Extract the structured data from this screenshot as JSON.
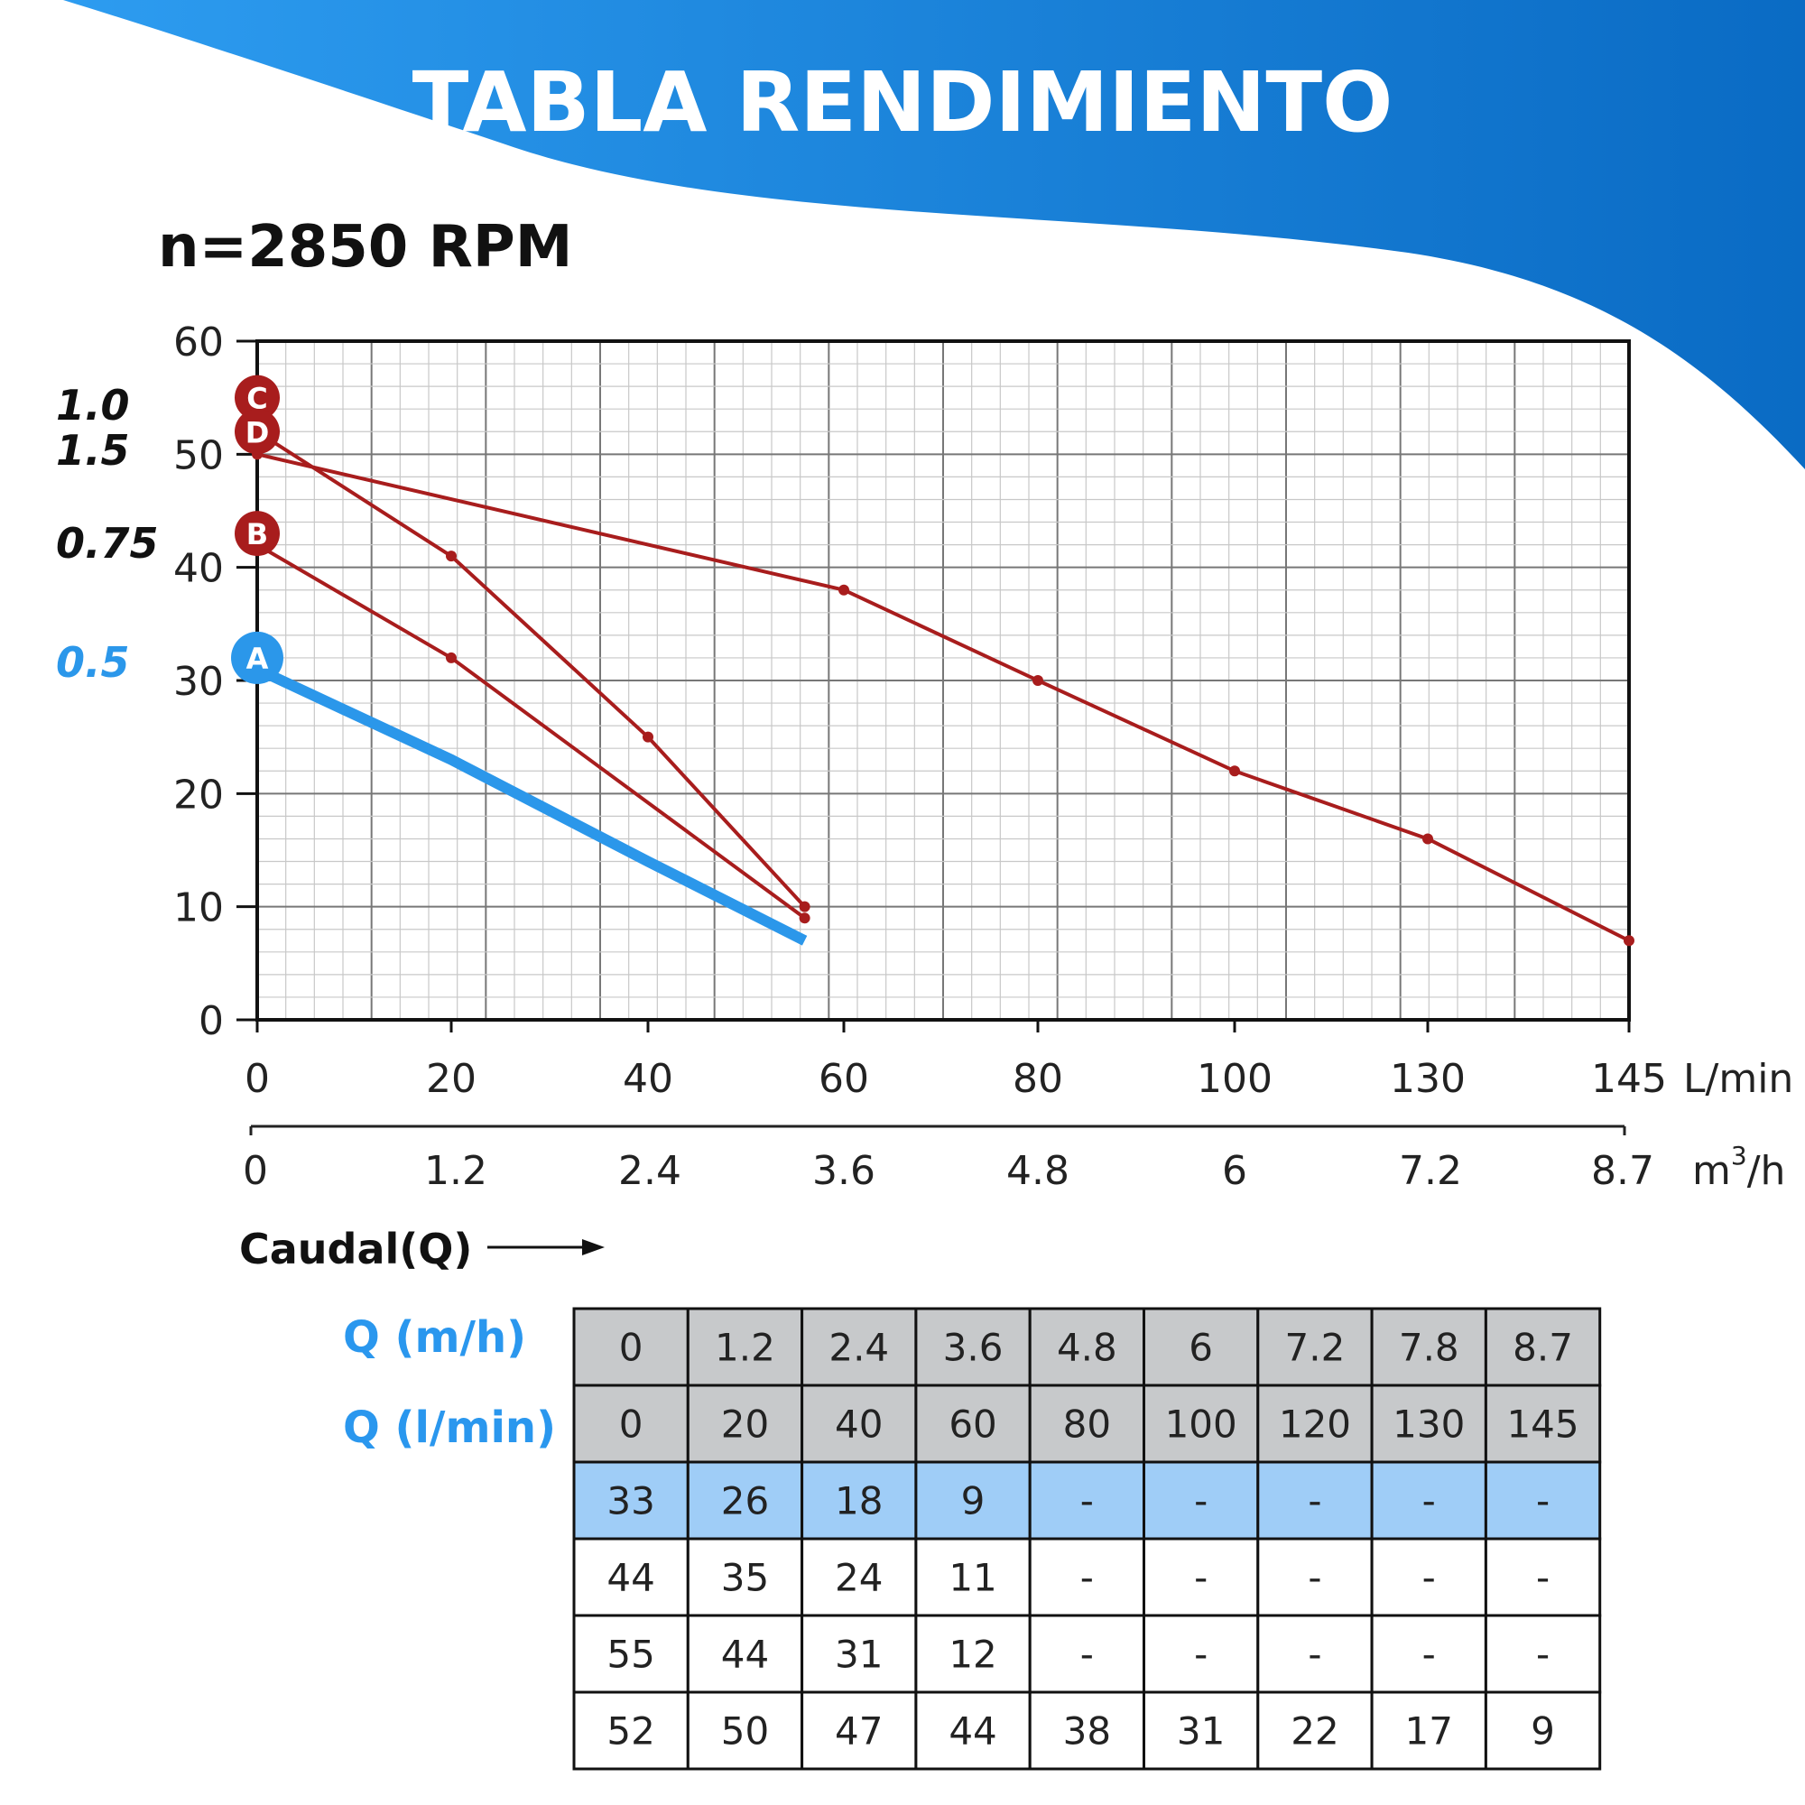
{
  "colors": {
    "banner_start": "#2d9cf0",
    "banner_end": "#0a6bc4",
    "red_curve": "#a81d1d",
    "blue_curve": "#2b97ea",
    "blue_row": "#9fcdf7",
    "grey_header": "#c7c9cb",
    "q_label": "#2a97ee"
  },
  "header": {
    "title": "TABLA RENDIMIENTO"
  },
  "subtitle": "n=2850 RPM",
  "chart_data": {
    "type": "line",
    "y_ticks": [
      "0",
      "10",
      "20",
      "30",
      "40",
      "50",
      "60"
    ],
    "ylim": [
      0,
      60
    ],
    "x_lmin_ticks": [
      "0",
      "20",
      "40",
      "60",
      "80",
      "100",
      "130",
      "145"
    ],
    "x_lmin_unit": "L/min",
    "x_m3h_ticks": [
      "0",
      "1.2",
      "2.4",
      "3.6",
      "4.8",
      "6",
      "7.2",
      "8.7"
    ],
    "x_m3h_unit": "m",
    "x_m3h_unit_sup": "3",
    "x_m3h_unit_tail": "/h",
    "xlabel": "Caudal(Q)",
    "grid": true,
    "series": [
      {
        "name": "A",
        "power": "0.5",
        "color": "#2b97ea",
        "x": [
          0,
          20,
          40,
          56
        ],
        "y": [
          31,
          23,
          14,
          7
        ]
      },
      {
        "name": "B",
        "power": "0.75",
        "color": "#a81d1d",
        "x": [
          0,
          20,
          56
        ],
        "y": [
          42,
          32,
          9
        ]
      },
      {
        "name": "C",
        "power": "1.0",
        "color": "#a81d1d",
        "x": [
          0,
          60,
          80,
          100,
          130,
          145
        ],
        "y": [
          50,
          38,
          30,
          22,
          16,
          7
        ]
      },
      {
        "name": "D",
        "power": "1.5",
        "color": "#a81d1d",
        "x": [
          0,
          20,
          40,
          56
        ],
        "y": [
          52,
          41,
          25,
          10
        ]
      }
    ],
    "markers": [
      {
        "label": "C",
        "x": 0,
        "y": 55,
        "power": "1.0"
      },
      {
        "label": "D",
        "x": 0,
        "y": 52,
        "power": "1.5"
      },
      {
        "label": "B",
        "x": 0,
        "y": 43,
        "power": "0.75"
      },
      {
        "label": "A",
        "x": 0,
        "y": 32,
        "power": "0.5"
      }
    ]
  },
  "table": {
    "row_labels": [
      "Q (m/h)",
      "Q (l/min)"
    ],
    "rows": [
      [
        "0",
        "1.2",
        "2.4",
        "3.6",
        "4.8",
        "6",
        "7.2",
        "7.8",
        "8.7"
      ],
      [
        "0",
        "20",
        "40",
        "60",
        "80",
        "100",
        "120",
        "130",
        "145"
      ],
      [
        "33",
        "26",
        "18",
        "9",
        "-",
        "-",
        "-",
        "-",
        "-"
      ],
      [
        "44",
        "35",
        "24",
        "11",
        "-",
        "-",
        "-",
        "-",
        "-"
      ],
      [
        "55",
        "44",
        "31",
        "12",
        "-",
        "-",
        "-",
        "-",
        "-"
      ],
      [
        "52",
        "50",
        "47",
        "44",
        "38",
        "31",
        "22",
        "17",
        "9"
      ]
    ]
  }
}
